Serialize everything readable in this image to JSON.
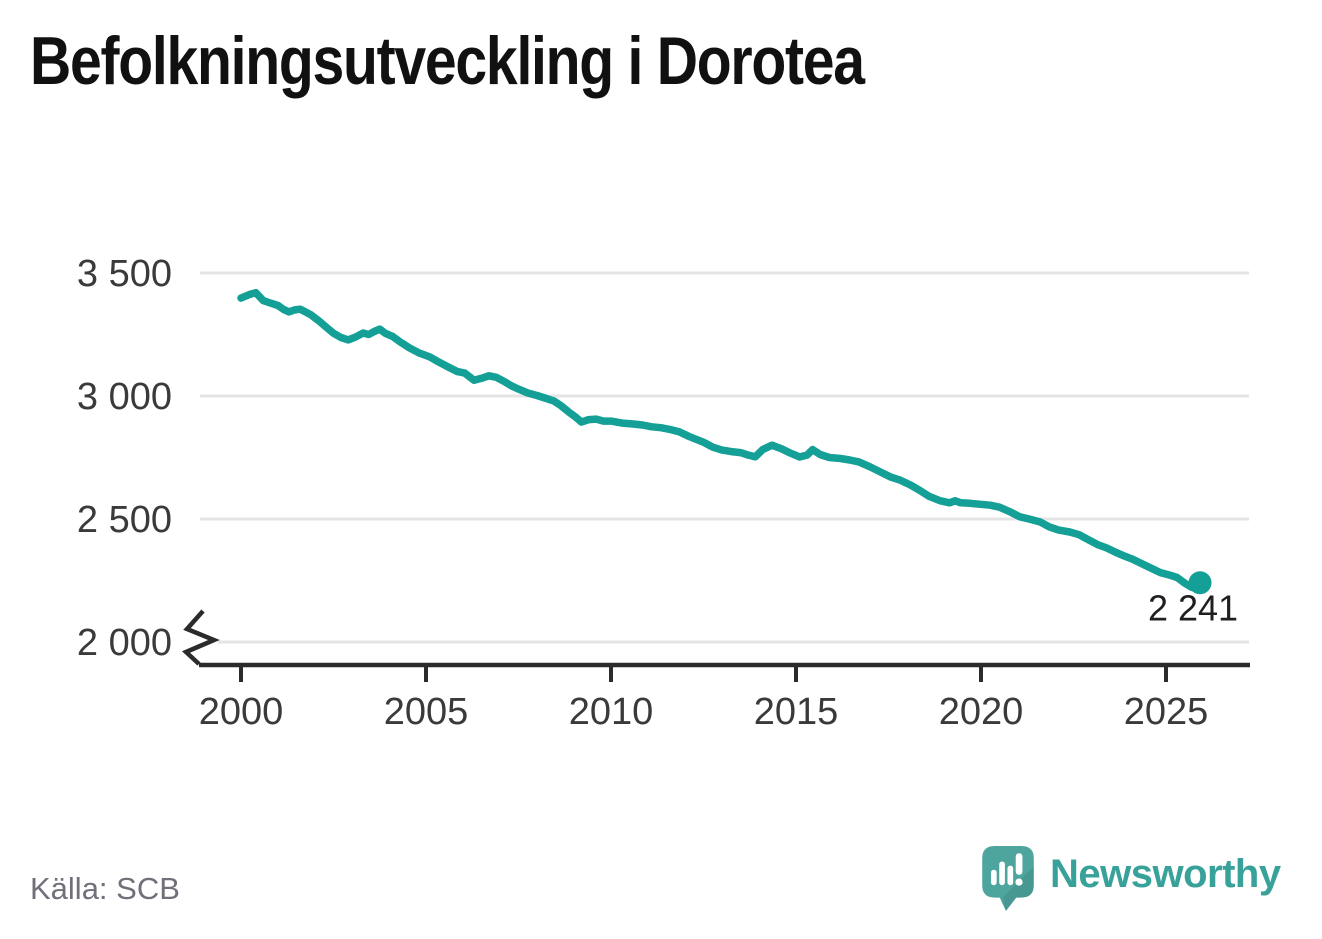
{
  "title": "Befolkningsutveckling i Dorotea",
  "source": {
    "label": "Källa: SCB"
  },
  "branding": {
    "wordmark": "Newsworthy",
    "icon": "speech-bubble-bar-chart-icon"
  },
  "colors": {
    "line": "#14a096",
    "grid": "#e4e4e4",
    "axis": "#2b2b2b",
    "title_text": "#111111",
    "tick_text": "#3a3a3a",
    "source_text": "#70707a",
    "brand_teal": "#38a29a",
    "logo_bubble": "#4da59d"
  },
  "chart_data": {
    "type": "line",
    "title": "Befolkningsutveckling i Dorotea",
    "xlabel": "",
    "ylabel": "",
    "legend": "none",
    "grid": "horizontal",
    "axis_break_below_y": 2000,
    "xlim": [
      1999.3,
      2027.3
    ],
    "ylim": [
      2000,
      3600
    ],
    "x_ticks": [
      "2000",
      "2005",
      "2010",
      "2015",
      "2020",
      "2025"
    ],
    "x_tick_values": [
      2000,
      2005,
      2010,
      2015,
      2020,
      2025
    ],
    "y_ticks": [
      "3 500",
      "3 000",
      "2 500",
      "2 000"
    ],
    "y_tick_values": [
      3500,
      3000,
      2500,
      2000
    ],
    "end_label": "2 241",
    "end_value": 2241,
    "x": [
      2000.0,
      2000.25,
      2000.4,
      2000.6,
      2000.75,
      2001.0,
      2001.15,
      2001.3,
      2001.45,
      2001.6,
      2001.75,
      2001.9,
      2002.1,
      2002.3,
      2002.5,
      2002.7,
      2002.9,
      2003.1,
      2003.3,
      2003.45,
      2003.6,
      2003.75,
      2003.9,
      2004.1,
      2004.3,
      2004.55,
      2004.8,
      2005.1,
      2005.35,
      2005.6,
      2005.85,
      2006.05,
      2006.3,
      2006.5,
      2006.7,
      2006.9,
      2007.1,
      2007.3,
      2007.5,
      2007.75,
      2008.0,
      2008.25,
      2008.45,
      2008.65,
      2008.85,
      2009.05,
      2009.2,
      2009.4,
      2009.6,
      2009.8,
      2010.0,
      2010.3,
      2010.6,
      2010.85,
      2011.1,
      2011.35,
      2011.6,
      2011.85,
      2012.1,
      2012.3,
      2012.5,
      2012.75,
      2013.0,
      2013.25,
      2013.5,
      2013.7,
      2013.9,
      2014.1,
      2014.35,
      2014.6,
      2014.85,
      2015.1,
      2015.3,
      2015.45,
      2015.65,
      2015.9,
      2016.2,
      2016.45,
      2016.7,
      2017.0,
      2017.3,
      2017.55,
      2017.8,
      2018.1,
      2018.35,
      2018.6,
      2018.9,
      2019.15,
      2019.3,
      2019.45,
      2019.7,
      2019.95,
      2020.25,
      2020.5,
      2020.8,
      2021.05,
      2021.3,
      2021.6,
      2021.85,
      2022.1,
      2022.4,
      2022.65,
      2022.9,
      2023.15,
      2023.4,
      2023.65,
      2023.9,
      2024.1,
      2024.35,
      2024.6,
      2024.85,
      2025.1,
      2025.3,
      2025.5,
      2025.7,
      2025.82,
      2025.92
    ],
    "series": [
      {
        "name": "Befolkning",
        "values": [
          3398,
          3414,
          3420,
          3388,
          3380,
          3368,
          3352,
          3342,
          3350,
          3353,
          3341,
          3329,
          3306,
          3280,
          3255,
          3238,
          3228,
          3240,
          3256,
          3250,
          3262,
          3272,
          3255,
          3242,
          3220,
          3196,
          3176,
          3159,
          3138,
          3118,
          3099,
          3093,
          3064,
          3072,
          3082,
          3076,
          3060,
          3042,
          3028,
          3012,
          3002,
          2990,
          2980,
          2960,
          2936,
          2914,
          2894,
          2904,
          2906,
          2898,
          2898,
          2890,
          2886,
          2882,
          2875,
          2871,
          2864,
          2854,
          2836,
          2824,
          2812,
          2792,
          2780,
          2774,
          2770,
          2760,
          2753,
          2782,
          2800,
          2786,
          2768,
          2752,
          2760,
          2782,
          2762,
          2750,
          2746,
          2740,
          2732,
          2712,
          2690,
          2671,
          2659,
          2638,
          2616,
          2592,
          2574,
          2566,
          2574,
          2566,
          2564,
          2560,
          2556,
          2548,
          2528,
          2509,
          2500,
          2488,
          2468,
          2455,
          2447,
          2436,
          2416,
          2396,
          2382,
          2364,
          2348,
          2336,
          2318,
          2300,
          2282,
          2272,
          2262,
          2240,
          2222,
          2218,
          2241
        ]
      }
    ]
  }
}
